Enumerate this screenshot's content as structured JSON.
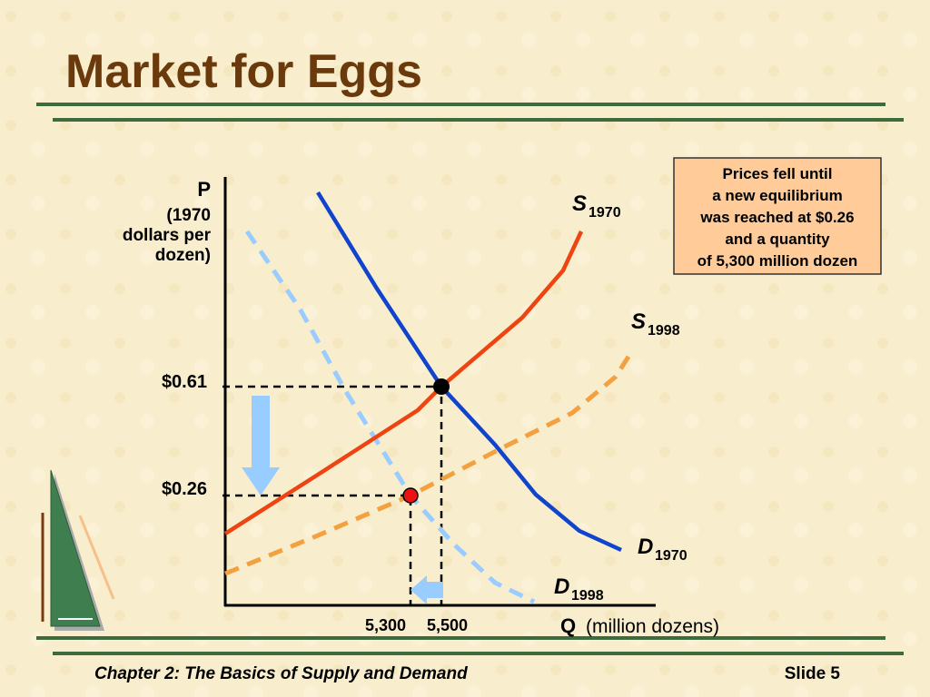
{
  "header": {
    "title": "Market for Eggs"
  },
  "diagram": {
    "y_axis": {
      "symbol": "P",
      "lines": [
        "(1970",
        "dollars per",
        "dozen)"
      ]
    },
    "x_axis": {
      "symbol": "Q",
      "unit": "(million dozens)"
    },
    "price_labels": [
      "$0.61",
      "$0.26"
    ],
    "quantity_labels": [
      "5,300",
      "5,500"
    ],
    "curves": [
      {
        "letter": "S",
        "year": "1970"
      },
      {
        "letter": "S",
        "year": "1998"
      },
      {
        "letter": "D",
        "year": "1970"
      },
      {
        "letter": "D",
        "year": "1998"
      }
    ],
    "callout": [
      "Prices fell until",
      "a new equilibrium",
      "was reached at $0.26",
      "and a  quantity",
      "of 5,300 million dozen"
    ]
  },
  "footer": {
    "chapter": "Chapter 2: The Basics of Supply and Demand",
    "slide": "Slide 5"
  }
}
